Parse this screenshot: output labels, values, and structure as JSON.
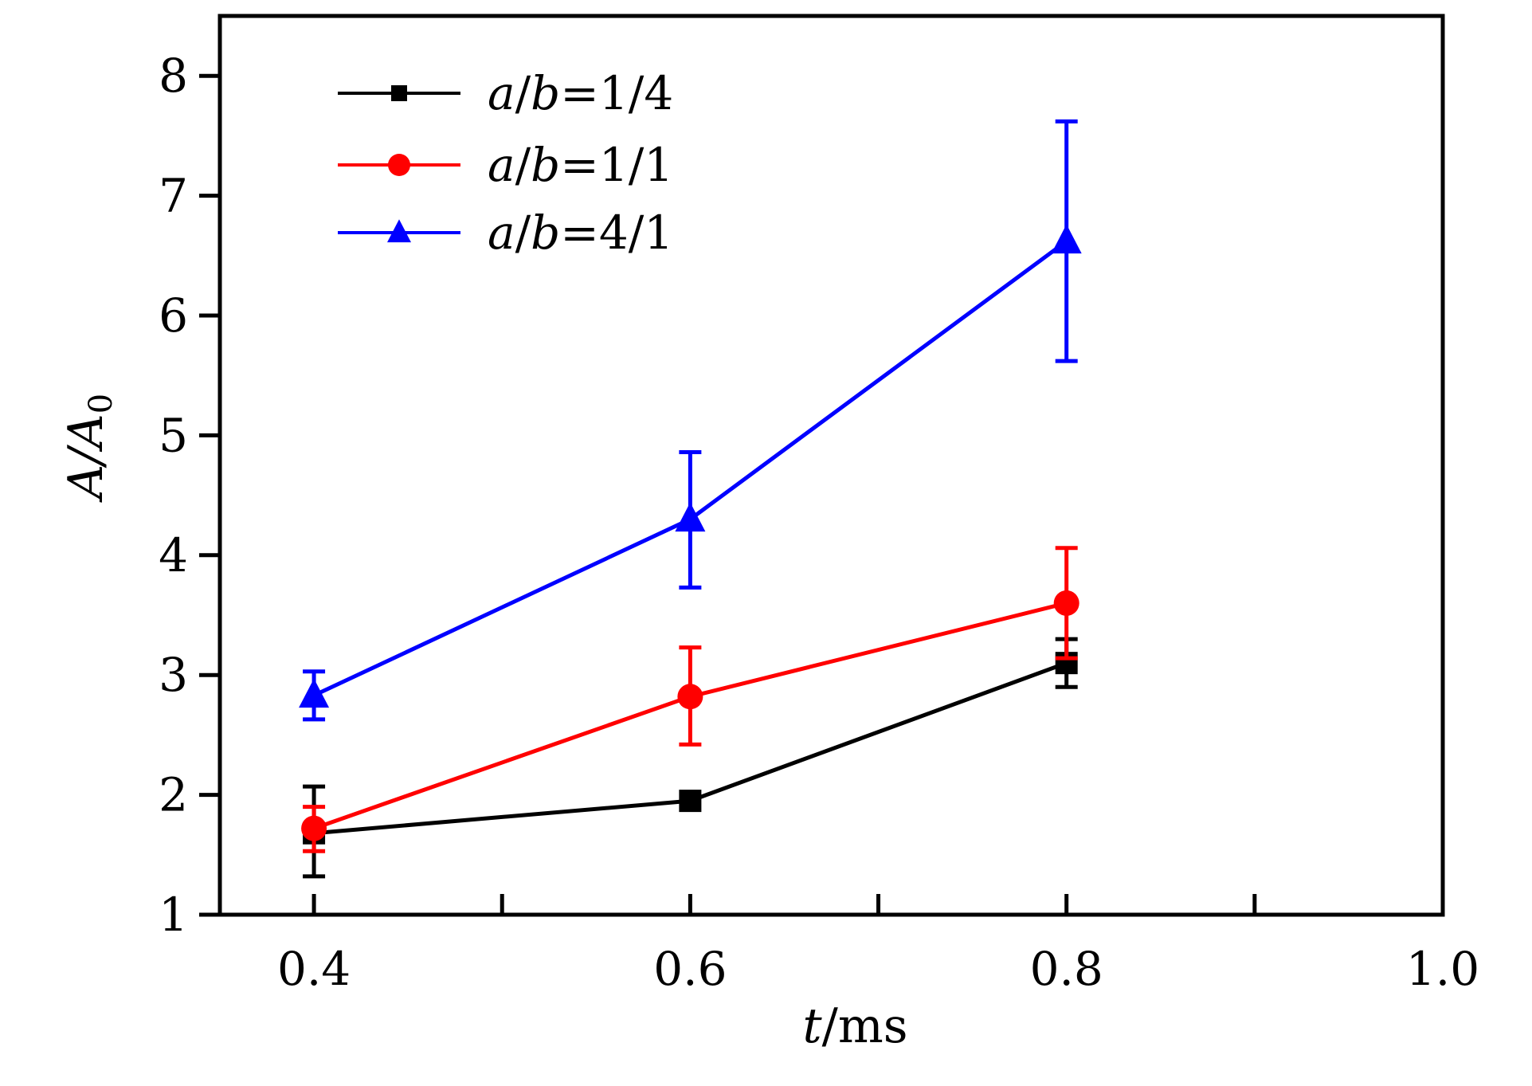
{
  "chart_data": {
    "type": "line",
    "title": "",
    "xlabel": {
      "italic": "t",
      "rest": "/ms"
    },
    "ylabel": {
      "main": "A/A",
      "sub": "0"
    },
    "xlim": [
      0.35,
      1.0
    ],
    "ylim": [
      1,
      8.5
    ],
    "xticks": [
      "0.4",
      "0.6",
      "0.8",
      "1.0"
    ],
    "xtick_values": [
      0.4,
      0.6,
      0.8,
      1.0
    ],
    "xminor_values": [
      0.5,
      0.7,
      0.9
    ],
    "yticks": [
      "1",
      "2",
      "3",
      "4",
      "5",
      "6",
      "7",
      "8"
    ],
    "ytick_values": [
      1,
      2,
      3,
      4,
      5,
      6,
      7,
      8
    ],
    "grid": false,
    "legend_position": "top-left",
    "x": [
      0.4,
      0.6,
      0.8
    ],
    "series": [
      {
        "name": "a/b=1/4",
        "legend": {
          "italic_a": "a",
          "slash": "/",
          "italic_b": "b",
          "rest": "=1/4"
        },
        "color": "#000000",
        "marker": "square",
        "values": [
          1.68,
          1.95,
          3.1
        ],
        "err_low": [
          1.32,
          1.95,
          2.9
        ],
        "err_high": [
          2.07,
          1.95,
          3.3
        ]
      },
      {
        "name": "a/b=1/1",
        "legend": {
          "italic_a": "a",
          "slash": "/",
          "italic_b": "b",
          "rest": "=1/1"
        },
        "color": "#ff0000",
        "marker": "circle",
        "values": [
          1.72,
          2.82,
          3.6
        ],
        "err_low": [
          1.53,
          2.42,
          3.14
        ],
        "err_high": [
          1.9,
          3.23,
          4.06
        ]
      },
      {
        "name": "a/b=4/1",
        "legend": {
          "italic_a": "a",
          "slash": "/",
          "italic_b": "b",
          "rest": "=4/1"
        },
        "color": "#0000ff",
        "marker": "triangle",
        "values": [
          2.83,
          4.3,
          6.62
        ],
        "err_low": [
          2.63,
          3.73,
          5.62
        ],
        "err_high": [
          3.03,
          4.86,
          7.62
        ]
      }
    ]
  }
}
